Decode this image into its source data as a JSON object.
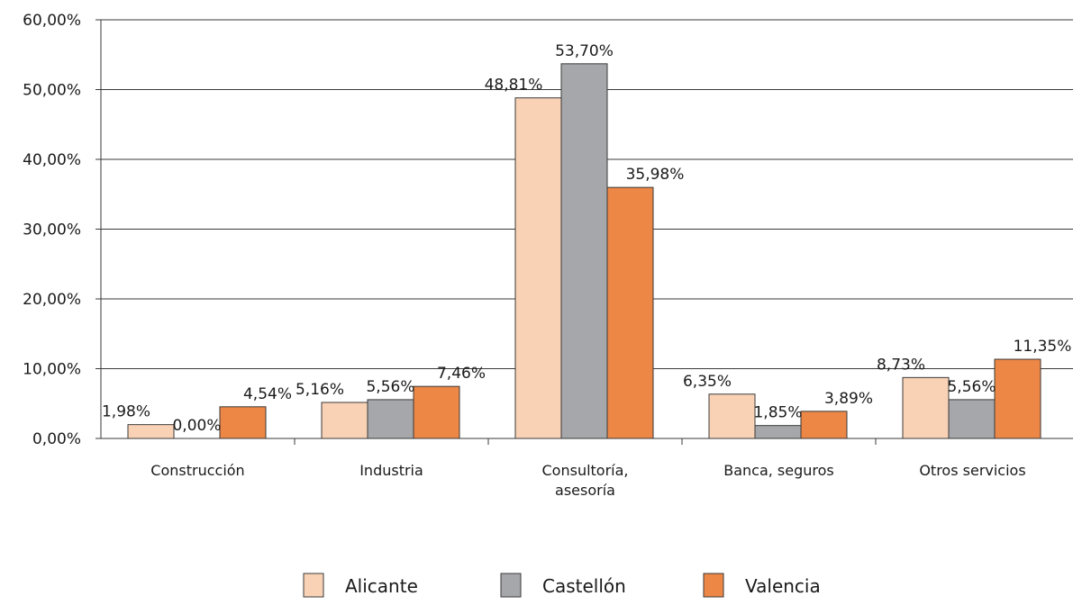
{
  "chart_data": {
    "type": "bar",
    "title": "",
    "xlabel": "",
    "ylabel": "",
    "ylim": [
      0,
      60
    ],
    "yticks": [
      0,
      10,
      20,
      30,
      40,
      50,
      60
    ],
    "ytick_labels": [
      "0,00%",
      "10,00%",
      "20,00%",
      "30,00%",
      "40,00%",
      "50,00%",
      "60,00%"
    ],
    "grid": "horizontal",
    "legend_position": "bottom",
    "categories": [
      [
        "Construcción"
      ],
      [
        "Industria"
      ],
      [
        "Consultoría,",
        "asesoría"
      ],
      [
        "Banca, seguros"
      ],
      [
        "Otros servicios"
      ]
    ],
    "series": [
      {
        "name": "Alicante",
        "color": "#f9d2b6",
        "values": [
          1.98,
          5.16,
          48.81,
          6.35,
          8.73
        ],
        "labels": [
          "1,98%",
          "5,16%",
          "48,81%",
          "6,35%",
          "8,73%"
        ]
      },
      {
        "name": "Castellón",
        "color": "#a6a7ab",
        "values": [
          0.0,
          5.56,
          53.7,
          1.85,
          5.56
        ],
        "labels": [
          "0,00%",
          "5,56%",
          "53,70%",
          "1,85%",
          "5,56%"
        ]
      },
      {
        "name": "Valencia",
        "color": "#ec8745",
        "values": [
          4.54,
          7.46,
          35.98,
          3.89,
          11.35
        ],
        "labels": [
          "4,54%",
          "7,46%",
          "35,98%",
          "3,89%",
          "11,35%"
        ]
      }
    ]
  }
}
